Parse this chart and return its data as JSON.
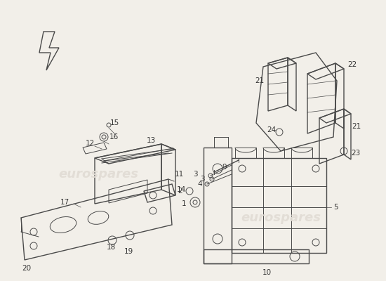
{
  "bg_color": "#f2efe9",
  "watermark_color": "#e2ddd5",
  "line_color": "#4a4a4a",
  "label_color": "#333333",
  "fig_width": 5.5,
  "fig_height": 4.0,
  "dpi": 100
}
